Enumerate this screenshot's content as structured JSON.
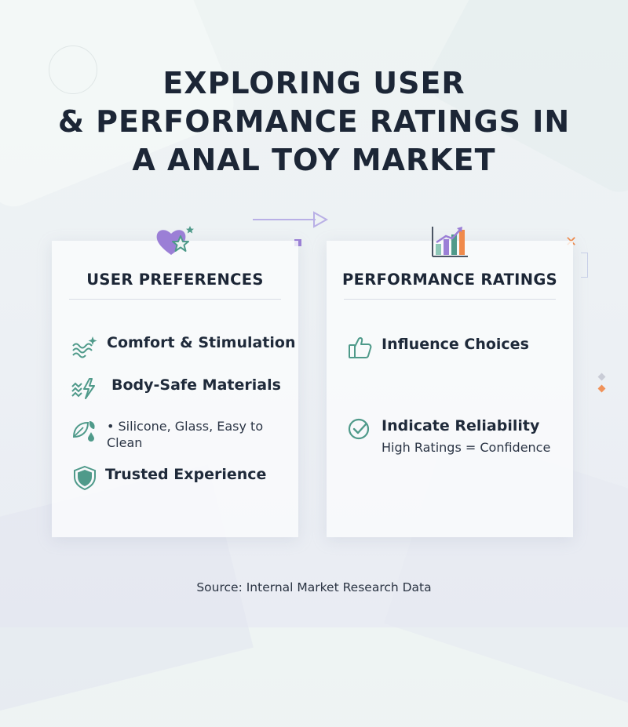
{
  "title_lines": [
    "EXPLORING USER",
    "& PERFORMANCE RATINGS IN",
    "A ANAL TOY MARKET"
  ],
  "colors": {
    "purple": "#9b7fd6",
    "teal": "#4f9a8a",
    "orange": "#f08a4b",
    "text": "#1c2636"
  },
  "left_card": {
    "icon": "heart-star-icon",
    "title": "USER PREFERENCES",
    "items": [
      {
        "icon": "waves-sparkle-icon",
        "label": "Comfort & Stimulation"
      },
      {
        "icon": "zigzag-bolt-icon",
        "label": "Body-Safe Materials"
      },
      {
        "icon": "leaf-drop-icon",
        "label": "• Silicone, Glass, Easy to Clean"
      },
      {
        "icon": "shield-icon",
        "label": "Trusted Experience"
      }
    ]
  },
  "right_card": {
    "icon": "bar-chart-up-icon",
    "title": "PERFORMANCE RATINGS",
    "items": [
      {
        "icon": "thumbs-up-icon",
        "label": "Influence Choices"
      },
      {
        "icon": "check-circle-icon",
        "label": "Indicate Reliability",
        "sub": "High Ratings = Confidence"
      }
    ]
  },
  "source": "Source: Internal Market Research Data"
}
